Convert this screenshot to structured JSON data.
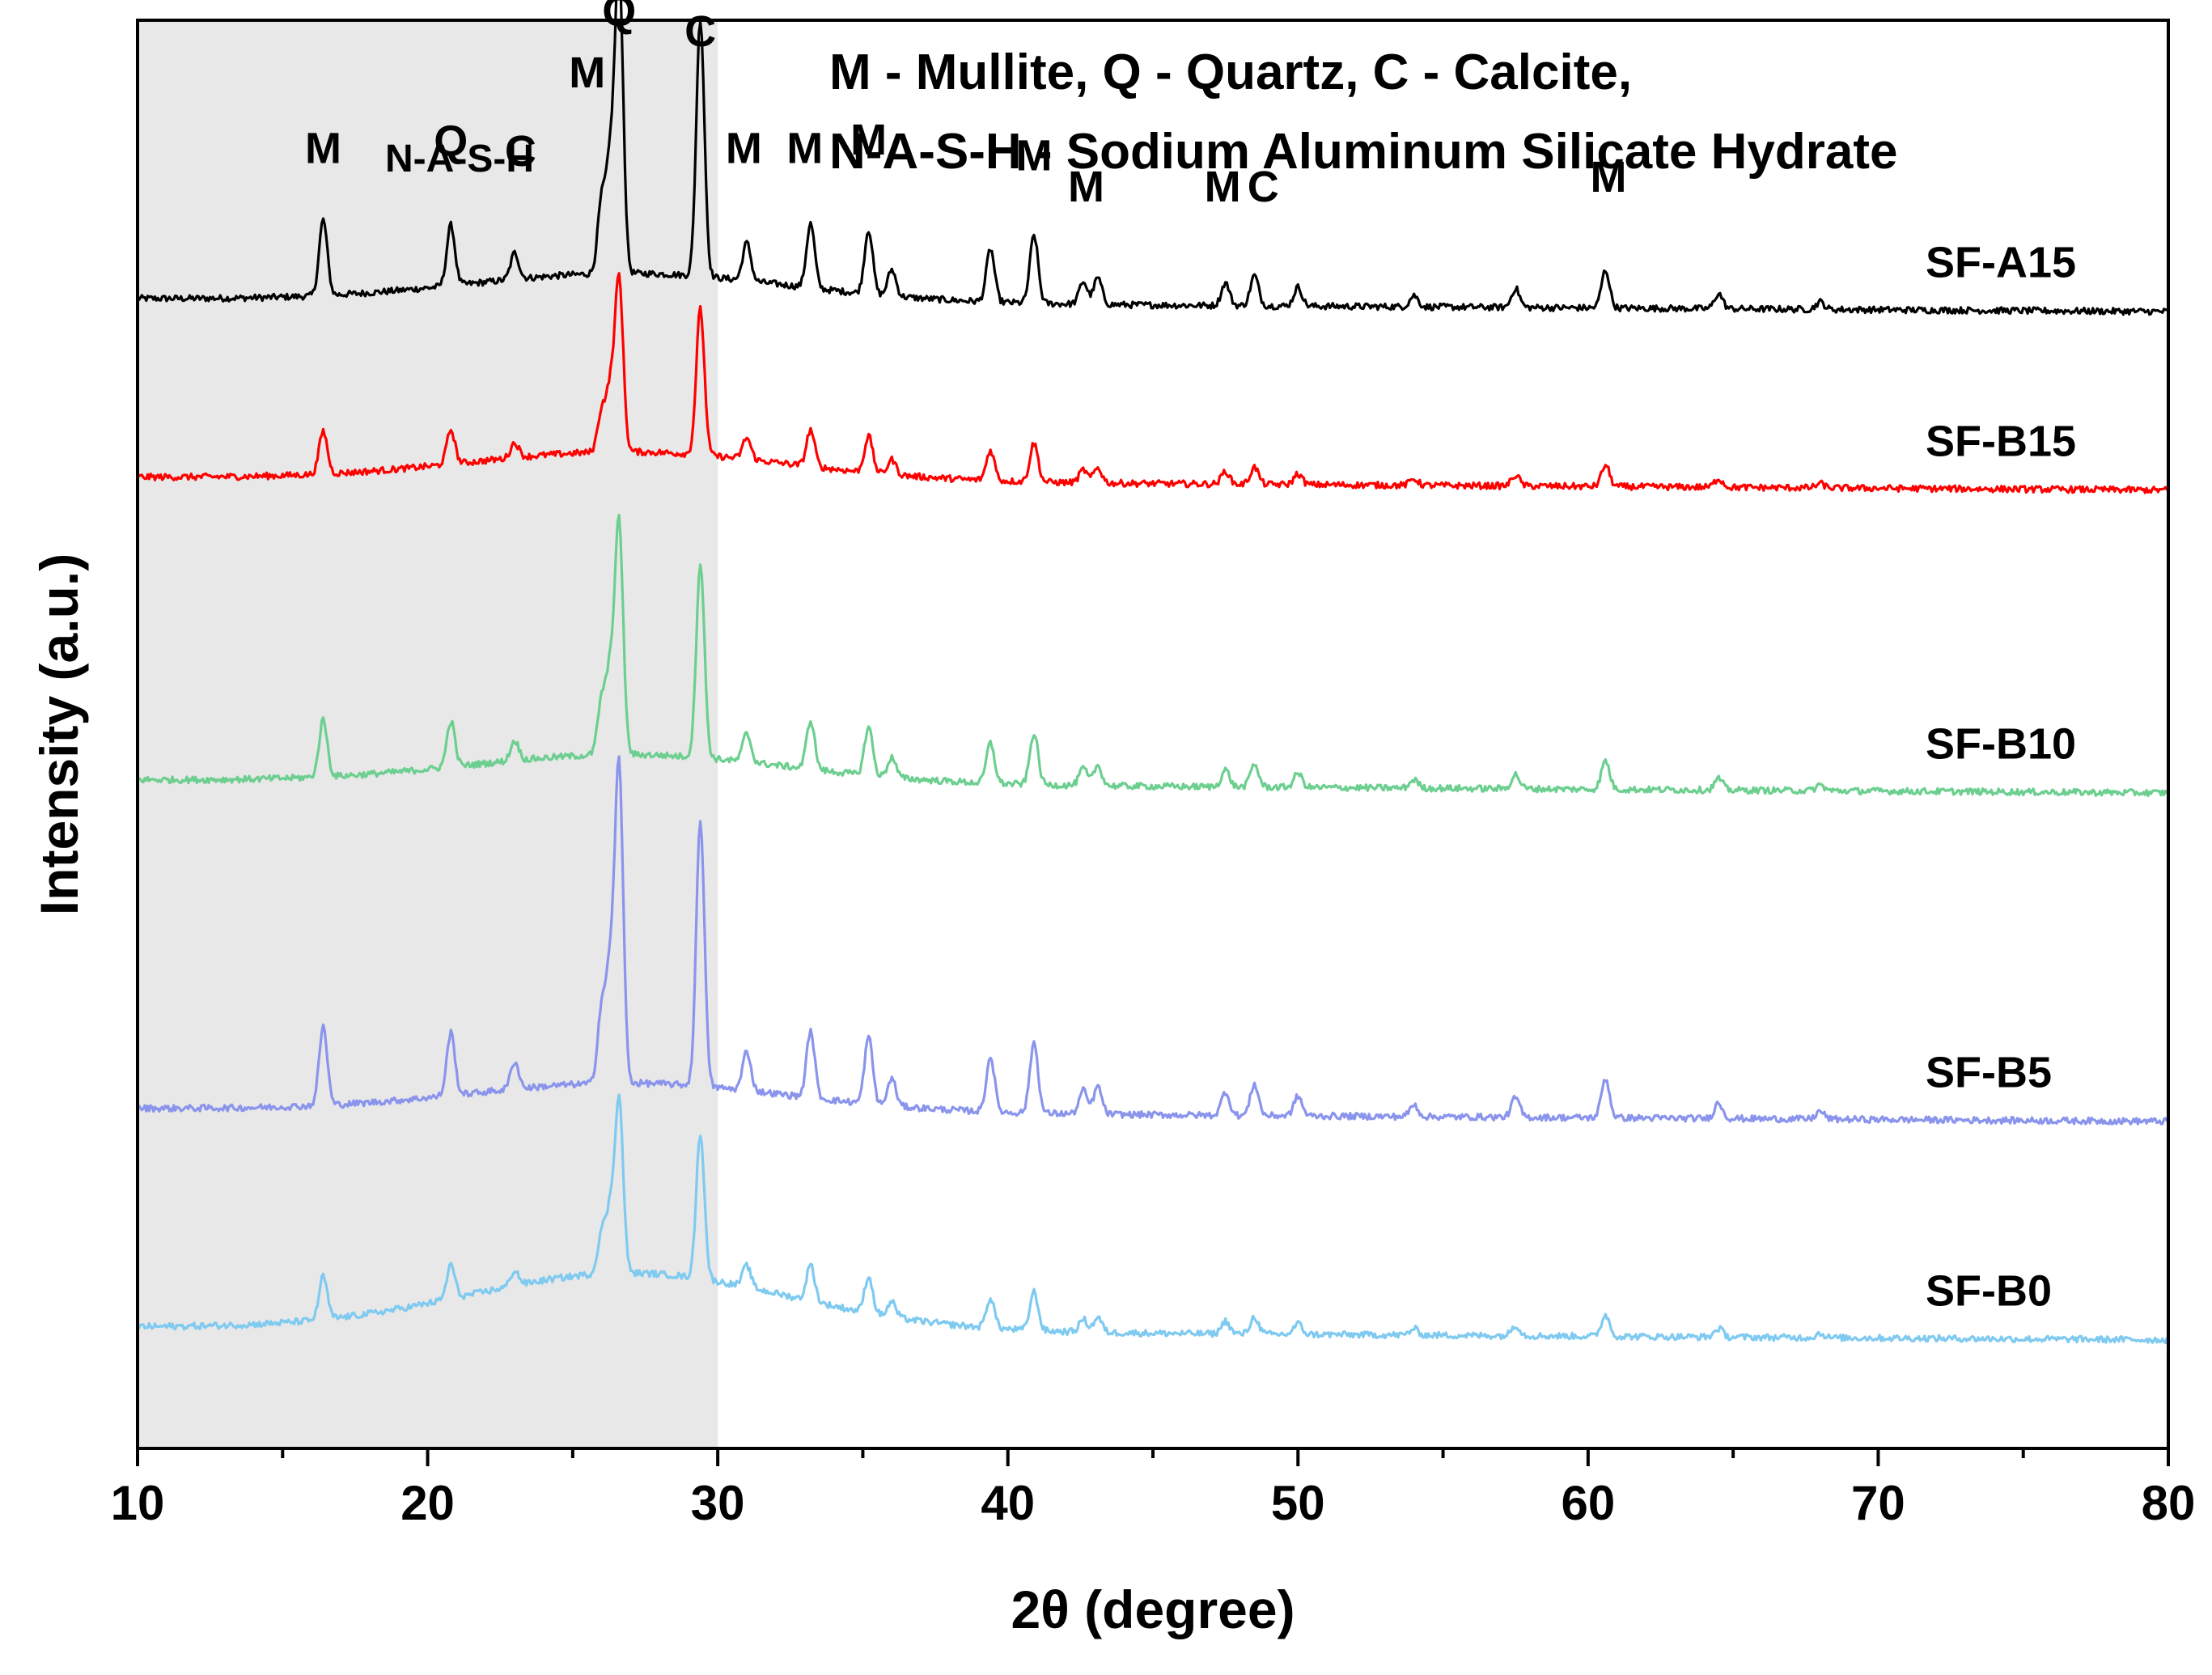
{
  "chart_data": {
    "type": "line",
    "title": "",
    "xlabel": "2θ (degree)",
    "ylabel": "Intensity (a.u.)",
    "xlim": [
      10,
      80
    ],
    "ylim": [
      0,
      100
    ],
    "xticks": [
      10,
      20,
      30,
      40,
      50,
      60,
      70,
      80
    ],
    "xtick_labels": [
      "10",
      "20",
      "30",
      "40",
      "50",
      "60",
      "70",
      "80"
    ],
    "yticks_visible": false,
    "grid": false,
    "legend_text": [
      "M - Mullite, Q - Quartz, C - Calcite,",
      "N-A-S-H - Sodium Aluminum Silicate Hydrate"
    ],
    "shaded_region": {
      "x_range": [
        10,
        30
      ],
      "label": "N-A-S-H",
      "color": "#e8e8e8"
    },
    "peaks": [
      {
        "pos": 16.4,
        "rel": 1.0
      },
      {
        "pos": 20.8,
        "rel": 0.8
      },
      {
        "pos": 23.0,
        "rel": 0.35
      },
      {
        "pos": 26.0,
        "rel": 0.95
      },
      {
        "pos": 26.3,
        "rel": 1.4
      },
      {
        "pos": 26.6,
        "rel": 4.0
      },
      {
        "pos": 29.4,
        "rel": 3.4
      },
      {
        "pos": 31.0,
        "rel": 0.5
      },
      {
        "pos": 33.2,
        "rel": 0.85
      },
      {
        "pos": 35.2,
        "rel": 0.85
      },
      {
        "pos": 36.0,
        "rel": 0.35
      },
      {
        "pos": 39.4,
        "rel": 0.7
      },
      {
        "pos": 40.9,
        "rel": 0.9
      },
      {
        "pos": 42.6,
        "rel": 0.3
      },
      {
        "pos": 43.1,
        "rel": 0.35
      },
      {
        "pos": 47.5,
        "rel": 0.3
      },
      {
        "pos": 48.5,
        "rel": 0.4
      },
      {
        "pos": 50.0,
        "rel": 0.25
      },
      {
        "pos": 54.0,
        "rel": 0.15
      },
      {
        "pos": 57.5,
        "rel": 0.25
      },
      {
        "pos": 60.6,
        "rel": 0.5
      },
      {
        "pos": 64.5,
        "rel": 0.2
      },
      {
        "pos": 68.0,
        "rel": 0.1
      }
    ],
    "series": [
      {
        "name": "SF-A15",
        "color": "#000000",
        "baseline": 80.5,
        "scale": 5.3,
        "hump": 2.0
      },
      {
        "name": "SF-B15",
        "color": "#ff0000",
        "baseline": 68.0,
        "scale": 3.0,
        "hump": 2.0
      },
      {
        "name": "SF-B10",
        "color": "#6ccf8f",
        "baseline": 46.8,
        "scale": 4.0,
        "hump": 2.0
      },
      {
        "name": "SF-B5",
        "color": "#8a94ec",
        "baseline": 23.8,
        "scale": 5.5,
        "hump": 2.0
      },
      {
        "name": "SF-B0",
        "color": "#7fcaf0",
        "baseline": 8.5,
        "scale": 3.0,
        "hump": 4.0
      }
    ],
    "peak_labels": [
      {
        "text": "M",
        "x": 16.4,
        "y": 90.0
      },
      {
        "text": "Q",
        "x": 20.8,
        "y": 90.5
      },
      {
        "text": "C",
        "x": 23.2,
        "y": 89.8
      },
      {
        "text": "M",
        "x": 25.5,
        "y": 95.3
      },
      {
        "text": "Q",
        "x": 26.6,
        "y": 99.6
      },
      {
        "text": "C",
        "x": 29.4,
        "y": 98.2
      },
      {
        "text": "M",
        "x": 30.9,
        "y": 90.0
      },
      {
        "text": "M",
        "x": 33.0,
        "y": 90.0
      },
      {
        "text": "M",
        "x": 35.2,
        "y": 90.6
      },
      {
        "text": "M",
        "x": 40.9,
        "y": 89.5
      },
      {
        "text": "M",
        "x": 42.7,
        "y": 87.3
      },
      {
        "text": "M",
        "x": 47.4,
        "y": 87.3
      },
      {
        "text": "C",
        "x": 48.8,
        "y": 87.3
      },
      {
        "text": "M",
        "x": 60.7,
        "y": 88.0
      }
    ]
  }
}
